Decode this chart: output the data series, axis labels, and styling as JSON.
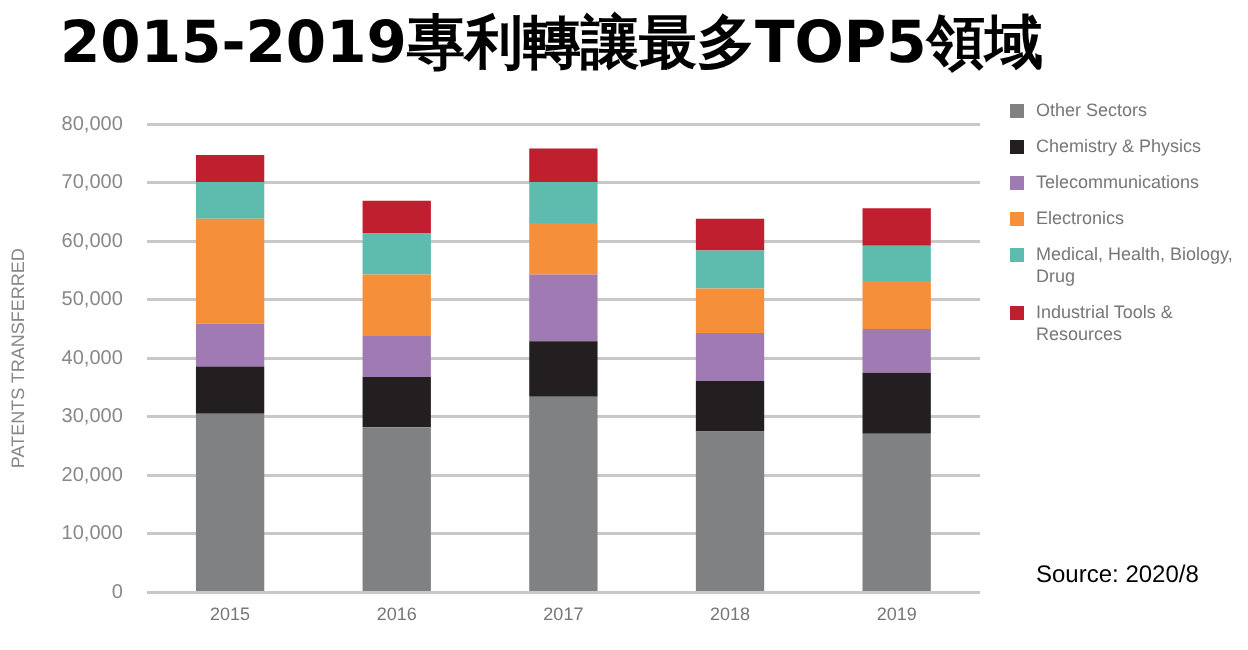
{
  "chart_data": {
    "type": "bar",
    "title": "2015-2019專利轉讓最多TOP5領域",
    "ylabel": "PATENTS TRANSFERRED",
    "categories": [
      "2015",
      "2016",
      "2017",
      "2018",
      "2019"
    ],
    "stacked": true,
    "series": [
      {
        "name": "Other Sectors",
        "color": "#808183",
        "values": [
          30500,
          28200,
          33400,
          27500,
          27100
        ]
      },
      {
        "name": "Chemistry & Physics",
        "color": "#231f20",
        "values": [
          8100,
          8600,
          9500,
          8600,
          10400
        ]
      },
      {
        "name": "Telecommunications",
        "color": "#a07ab2",
        "values": [
          7300,
          7000,
          11400,
          8200,
          7500
        ]
      },
      {
        "name": "Electronics",
        "color": "#f58f3a",
        "values": [
          17900,
          10500,
          8800,
          7600,
          8200
        ]
      },
      {
        "name": "Medical, Health, Biology, Drug",
        "color": "#5dbcad",
        "values": [
          6300,
          7000,
          7000,
          6500,
          6000
        ]
      },
      {
        "name": "Industrial Tools & Resources",
        "color": "#c01f2f",
        "values": [
          4600,
          5600,
          5700,
          5400,
          6400
        ]
      }
    ],
    "ylim": [
      0,
      80000
    ],
    "yticks": [
      0,
      {
        "value": 10000,
        "label": "10,000"
      },
      {
        "value": 20000,
        "label": "20,000"
      },
      {
        "value": 30000,
        "label": "30,000"
      },
      {
        "value": 40000,
        "label": "40,000"
      },
      {
        "value": 50000,
        "label": "50,000"
      },
      {
        "value": 60000,
        "label": "60,000"
      },
      {
        "value": 70000,
        "label": "70,000"
      },
      {
        "value": 80000,
        "label": "80,000"
      }
    ],
    "grid": "y",
    "legend": "right",
    "annotations": [
      "Source: 2020/8"
    ]
  }
}
